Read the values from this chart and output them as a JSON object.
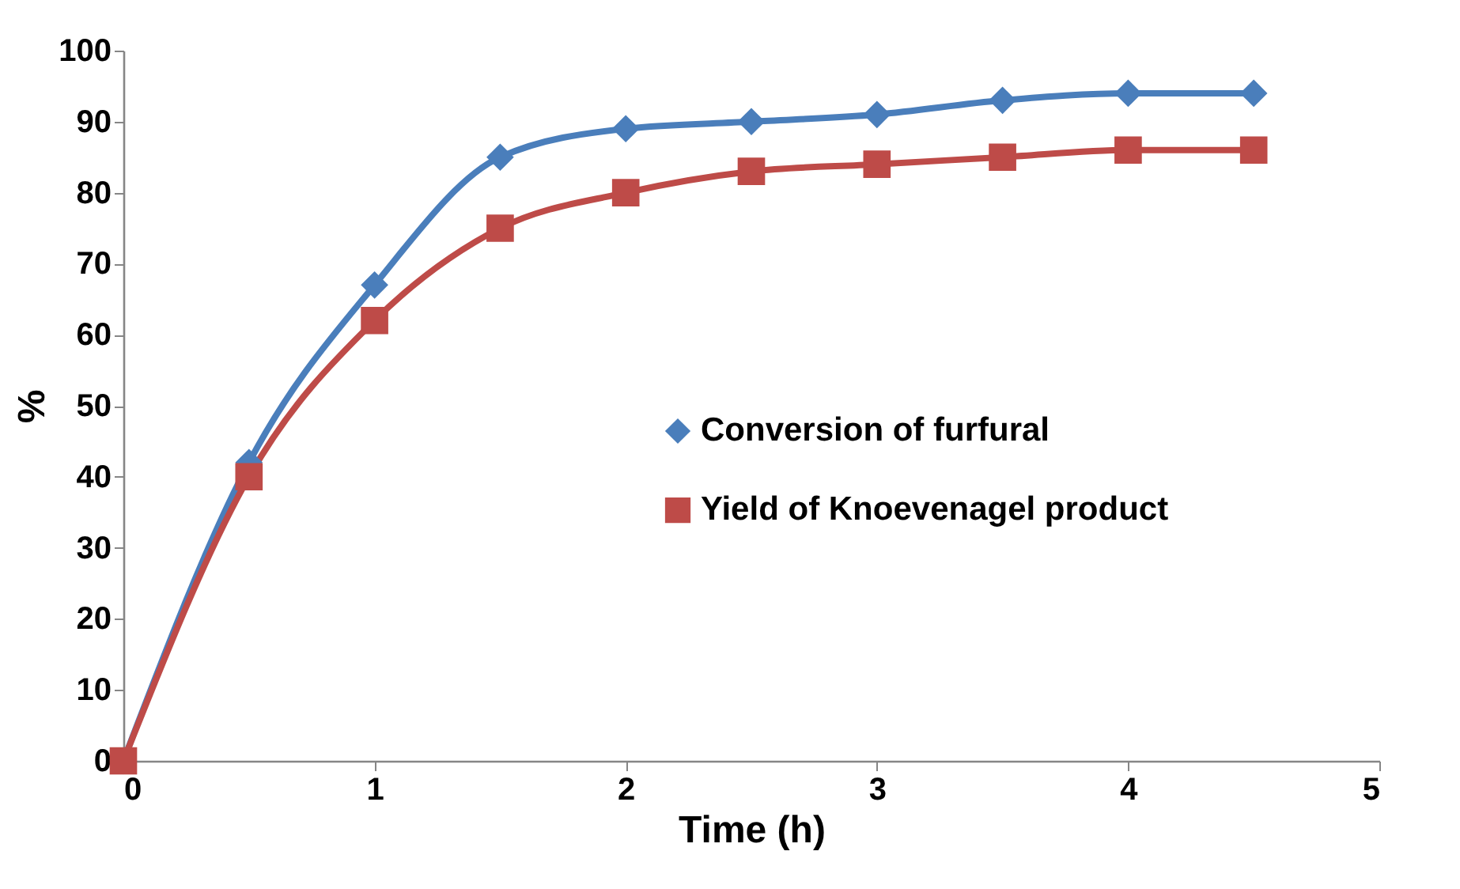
{
  "chart_data": {
    "type": "line",
    "xlabel": "Time (h)",
    "ylabel": "%",
    "x": [
      0,
      0.5,
      1,
      1.5,
      2,
      2.5,
      3,
      3.5,
      4,
      4.5
    ],
    "series": [
      {
        "name": "Conversion of furfural",
        "color": "#4a7ebb",
        "marker": "diamond",
        "values": [
          0,
          42,
          67,
          85,
          89,
          90,
          91,
          93,
          94,
          94
        ]
      },
      {
        "name": "Yield of Knoevenagel product",
        "color": "#be4b48",
        "marker": "square",
        "values": [
          0,
          40,
          62,
          75,
          80,
          83,
          84,
          85,
          86,
          86
        ]
      }
    ],
    "xlim": [
      0,
      5
    ],
    "xticks": [
      0,
      1,
      2,
      3,
      4,
      5
    ],
    "ylim": [
      0,
      100
    ],
    "yticks": [
      0,
      10,
      20,
      30,
      40,
      50,
      60,
      70,
      80,
      90,
      100
    ],
    "grid": false,
    "legend": "right",
    "line_style": "solid"
  }
}
